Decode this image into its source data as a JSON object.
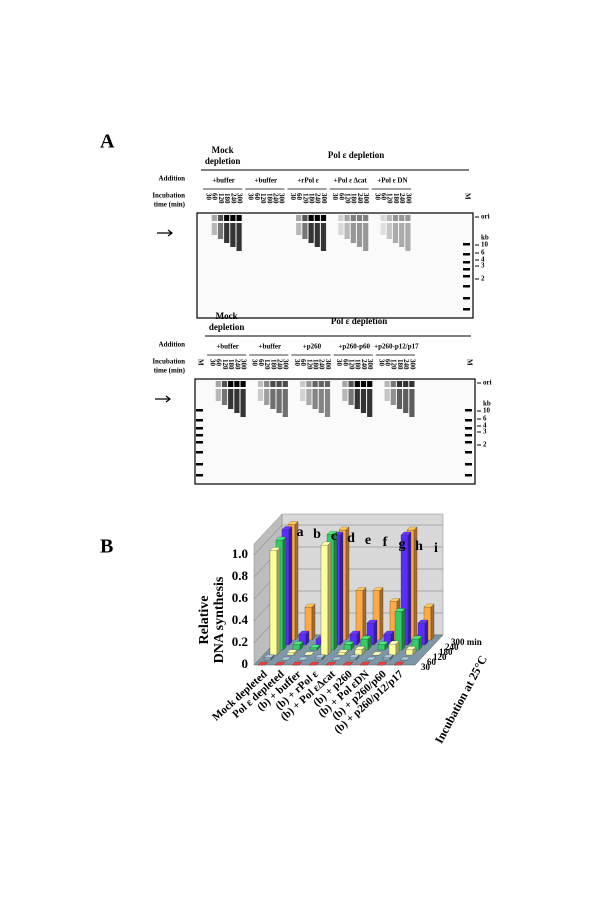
{
  "panel_a": {
    "label": "A",
    "addition_label": "Addition",
    "incubation_label": [
      "Incubation",
      "time (min)"
    ],
    "lane_times": [
      "30",
      "60",
      "120",
      "180",
      "240",
      "300"
    ],
    "marker_lane": "M",
    "size_markers": [
      "ori",
      "kb",
      "10",
      "6",
      "4",
      "3",
      "2"
    ],
    "gels": [
      {
        "headers": [
          [
            "Mock",
            "depletion"
          ],
          [
            "Pol ε depletion"
          ]
        ],
        "groups": [
          "+buffer",
          "+buffer",
          "+rPol ε",
          "+Pol ε Δcat",
          "+Pol ε DN"
        ]
      },
      {
        "headers": [
          [
            "Mock",
            "depletion"
          ],
          [
            "Pol ε depletion"
          ]
        ],
        "groups": [
          "+buffer",
          "+buffer",
          "+p260",
          "+p260-p60",
          "+p260-p12/p17"
        ]
      }
    ]
  },
  "panel_b_label": "B",
  "chart_data": {
    "type": "bar3d",
    "ylabel": [
      "Relative",
      "DNA synthesis"
    ],
    "zlabel": "Incubation at 25°C",
    "categories": [
      "Mock depleted",
      "Pol ε depleted",
      "(b) + buffer",
      "(b) + rPol ε",
      "(b) + Pol εΔcat",
      "(b) + p260",
      "(b) + Pol εDN",
      "(b) + p260/p60",
      "(b) + p260/p12/p17"
    ],
    "category_letters": [
      "a",
      "b",
      "c",
      "d",
      "e",
      "f",
      "g",
      "h",
      "i"
    ],
    "series": [
      {
        "name": "30",
        "color": "#e03030",
        "values": [
          0,
          0,
          0,
          0,
          0,
          0,
          0,
          0,
          0
        ]
      },
      {
        "name": "60",
        "color": "#8fa8b8",
        "values": [
          0.02,
          0,
          0,
          0.02,
          0,
          0.02,
          0,
          0.02,
          0
        ]
      },
      {
        "name": "120",
        "color": "#ffff99",
        "values": [
          0.95,
          0.02,
          0,
          1.0,
          0.02,
          0.05,
          0,
          0.1,
          0.05
        ]
      },
      {
        "name": "180",
        "color": "#33cc66",
        "values": [
          1.0,
          0.05,
          0.02,
          1.05,
          0.05,
          0.1,
          0.05,
          0.35,
          0.1
        ]
      },
      {
        "name": "240",
        "color": "#5a2cff",
        "values": [
          1.05,
          0.1,
          0.05,
          1.0,
          0.1,
          0.2,
          0.1,
          1.0,
          0.2
        ]
      },
      {
        "name": "300 min",
        "color": "#ffaa44",
        "values": [
          1.05,
          0.3,
          0.1,
          1.0,
          0.45,
          0.45,
          0.35,
          1.0,
          0.3
        ]
      }
    ],
    "ylim": [
      0,
      1.1
    ],
    "yticks": [
      0,
      0.2,
      0.4,
      0.6,
      0.8,
      {
        "value": 1,
        "label": "1.0"
      }
    ]
  }
}
